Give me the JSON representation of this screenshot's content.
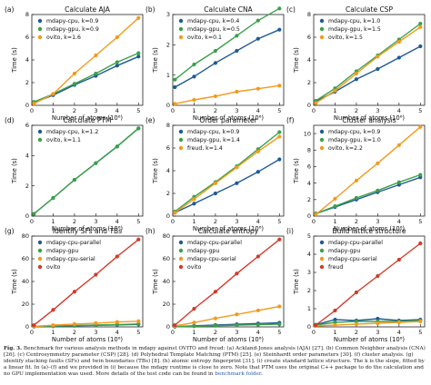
{
  "chart_data": [
    {
      "type": "line",
      "letter": "(a)",
      "title": "Calculate AJA",
      "xlabel": "Number of atoms (10⁶)",
      "ylabel": "Time (s)",
      "xlim": [
        0,
        5.2
      ],
      "ylim": [
        0,
        8
      ],
      "xticks": [
        0,
        1,
        2,
        3,
        4,
        5
      ],
      "yticks": [
        0,
        2,
        4,
        6,
        8
      ],
      "legend": "top-left",
      "series": [
        {
          "name": "mdapy-cpu, k=0.9",
          "color": "#1f5a96",
          "x": [
            0.1,
            1,
            2,
            3,
            4,
            5
          ],
          "y": [
            0.25,
            0.9,
            1.8,
            2.6,
            3.5,
            4.3
          ]
        },
        {
          "name": "mdapy-gpu, k=0.9",
          "color": "#3aa14a",
          "x": [
            0.1,
            1,
            2,
            3,
            4,
            5
          ],
          "y": [
            0.3,
            1.0,
            1.9,
            2.8,
            3.8,
            4.6
          ]
        },
        {
          "name": "ovito, k=1.6",
          "color": "#f39a1c",
          "x": [
            0.1,
            1,
            2,
            3,
            4,
            5
          ],
          "y": [
            0.15,
            1.0,
            2.8,
            4.4,
            6.0,
            7.7
          ]
        }
      ]
    },
    {
      "type": "line",
      "letter": "(b)",
      "title": "Calculate CNA",
      "xlabel": "Number of atoms (10⁶)",
      "ylabel": "Time (s)",
      "xlim": [
        0,
        5.2
      ],
      "ylim": [
        0,
        3
      ],
      "xticks": [
        0,
        1,
        2,
        3,
        4,
        5
      ],
      "yticks": [
        0,
        1,
        2,
        3
      ],
      "legend": "top-left",
      "series": [
        {
          "name": "mdapy-cpu, k=0.4",
          "color": "#1f5a96",
          "x": [
            0.1,
            1,
            2,
            3,
            4,
            5
          ],
          "y": [
            0.6,
            0.95,
            1.4,
            1.8,
            2.2,
            2.5
          ]
        },
        {
          "name": "mdapy-gpu, k=0.5",
          "color": "#3aa14a",
          "x": [
            0.1,
            1,
            2,
            3,
            4,
            5
          ],
          "y": [
            0.85,
            1.35,
            1.8,
            2.3,
            2.8,
            3.2
          ]
        },
        {
          "name": "ovito, k=0.1",
          "color": "#f39a1c",
          "x": [
            0.1,
            1,
            2,
            3,
            4,
            5
          ],
          "y": [
            0.05,
            0.18,
            0.3,
            0.45,
            0.55,
            0.65
          ]
        }
      ]
    },
    {
      "type": "line",
      "letter": "(c)",
      "title": "Calculate CSP",
      "xlabel": "Number of atoms (10⁶)",
      "ylabel": "Time (s)",
      "xlim": [
        0,
        5.2
      ],
      "ylim": [
        0,
        8
      ],
      "xticks": [
        0,
        1,
        2,
        3,
        4,
        5
      ],
      "yticks": [
        0,
        2,
        4,
        6,
        8
      ],
      "legend": "top-left",
      "series": [
        {
          "name": "mdapy-cpu, k=1.0",
          "color": "#1f5a96",
          "x": [
            0.1,
            1,
            2,
            3,
            4,
            5
          ],
          "y": [
            0.35,
            1.2,
            2.3,
            3.2,
            4.2,
            5.2
          ]
        },
        {
          "name": "mdapy-gpu, k=1.5",
          "color": "#3aa14a",
          "x": [
            0.1,
            1,
            2,
            3,
            4,
            5
          ],
          "y": [
            0.4,
            1.5,
            3.0,
            4.4,
            5.8,
            7.2
          ]
        },
        {
          "name": "ovito, k=1.5",
          "color": "#f39a1c",
          "x": [
            0.1,
            1,
            2,
            3,
            4,
            5
          ],
          "y": [
            0.2,
            1.3,
            2.8,
            4.3,
            5.6,
            6.9
          ]
        }
      ]
    },
    {
      "type": "line",
      "letter": "(d)",
      "title": "Calculate PTM",
      "xlabel": "Number of atoms (10⁶)",
      "ylabel": "Time (s)",
      "xlim": [
        0,
        5.2
      ],
      "ylim": [
        0,
        6
      ],
      "xticks": [
        0,
        1,
        2,
        3,
        4,
        5
      ],
      "yticks": [
        0,
        2,
        4,
        6
      ],
      "legend": "top-left",
      "series": [
        {
          "name": "mdapy-cpu, k=1.2",
          "color": "#1f5a96",
          "x": [
            0.1,
            1,
            2,
            3,
            4,
            5
          ],
          "y": [
            0.15,
            1.2,
            2.4,
            3.5,
            4.6,
            5.8
          ]
        },
        {
          "name": "ovito, k=1.1",
          "color": "#3aa14a",
          "x": [
            0.1,
            1,
            2,
            3,
            4,
            5
          ],
          "y": [
            0.15,
            1.2,
            2.4,
            3.5,
            4.6,
            5.8
          ]
        }
      ]
    },
    {
      "type": "line",
      "letter": "(e)",
      "title": "Order parameter",
      "xlabel": "Number of atoms (10⁶)",
      "ylabel": "Time (s)",
      "xlim": [
        0,
        5.2
      ],
      "ylim": [
        0,
        8
      ],
      "xticks": [
        0,
        1,
        2,
        3,
        4,
        5
      ],
      "yticks": [
        0,
        2,
        4,
        6,
        8
      ],
      "legend": "top-left",
      "series": [
        {
          "name": "mdapy-cpu, k=0.9",
          "color": "#1f5a96",
          "x": [
            0.1,
            1,
            2,
            3,
            4,
            5
          ],
          "y": [
            0.3,
            1.1,
            2.0,
            2.9,
            3.9,
            5.0
          ]
        },
        {
          "name": "mdapy-gpu, k=1.4",
          "color": "#3aa14a",
          "x": [
            0.1,
            1,
            2,
            3,
            4,
            5
          ],
          "y": [
            0.4,
            1.7,
            3.0,
            4.4,
            5.9,
            7.4
          ]
        },
        {
          "name": "freud, k=1.4",
          "color": "#f39a1c",
          "x": [
            0.1,
            1,
            2,
            3,
            4,
            5
          ],
          "y": [
            0.3,
            1.5,
            2.9,
            4.3,
            5.7,
            7.0
          ]
        }
      ]
    },
    {
      "type": "line",
      "letter": "(f)",
      "title": "Cluster analysis",
      "xlabel": "Number of atoms (10⁶)",
      "ylabel": "Time (s)",
      "xlim": [
        0,
        5.2
      ],
      "ylim": [
        0,
        11
      ],
      "xticks": [
        0,
        1,
        2,
        3,
        4,
        5
      ],
      "yticks": [
        0,
        2,
        4,
        6,
        8,
        10
      ],
      "legend": "top-left",
      "series": [
        {
          "name": "mdapy-cpu, k=0.9",
          "color": "#1f5a96",
          "x": [
            0.1,
            1,
            2,
            3,
            4,
            5
          ],
          "y": [
            0.3,
            1.1,
            2.0,
            2.9,
            3.8,
            4.7
          ]
        },
        {
          "name": "mdapy-gpu, k=1.0",
          "color": "#3aa14a",
          "x": [
            0.1,
            1,
            2,
            3,
            4,
            5
          ],
          "y": [
            0.3,
            1.2,
            2.2,
            3.1,
            4.1,
            5.0
          ]
        },
        {
          "name": "ovito, k=2.2",
          "color": "#f39a1c",
          "x": [
            0.1,
            1,
            2,
            3,
            4,
            5
          ],
          "y": [
            0.2,
            2.1,
            4.3,
            6.4,
            8.6,
            10.8
          ]
        }
      ]
    },
    {
      "type": "line",
      "letter": "(g)",
      "title": "Identify SFs and TBs",
      "xlabel": "Number of atoms (10⁶)",
      "ylabel": "Time (s)",
      "xlim": [
        0,
        5.2
      ],
      "ylim": [
        0,
        80
      ],
      "xticks": [
        0,
        1,
        2,
        3,
        4,
        5
      ],
      "yticks": [
        0,
        20,
        40,
        60,
        80
      ],
      "legend": "top-left",
      "series": [
        {
          "name": "mdapy-cpu-parallel",
          "color": "#1f5a96",
          "x": [
            0.1,
            1,
            2,
            3,
            4,
            5
          ],
          "y": [
            0.2,
            0.6,
            1.0,
            1.4,
            1.8,
            2.2
          ]
        },
        {
          "name": "mdapy-gpu",
          "color": "#3aa14a",
          "x": [
            0.1,
            1,
            2,
            3,
            4,
            5
          ],
          "y": [
            0.3,
            0.7,
            1.2,
            1.6,
            2.1,
            2.6
          ]
        },
        {
          "name": "mdapy-cpu-serial",
          "color": "#f39a1c",
          "x": [
            0.1,
            1,
            2,
            3,
            4,
            5
          ],
          "y": [
            0.4,
            1.5,
            2.5,
            3.3,
            4.3,
            5.0
          ]
        },
        {
          "name": "ovito",
          "color": "#d23a2a",
          "x": [
            0.1,
            1,
            2,
            3,
            4,
            5
          ],
          "y": [
            1.5,
            15,
            31,
            46,
            62,
            77
          ]
        }
      ]
    },
    {
      "type": "line",
      "letter": "(h)",
      "title": "Calculate entropy",
      "xlabel": "Number of atoms (10⁶)",
      "ylabel": "Time (s)",
      "xlim": [
        0,
        5.2
      ],
      "ylim": [
        0,
        80
      ],
      "xticks": [
        0,
        1,
        2,
        3,
        4,
        5
      ],
      "yticks": [
        0,
        20,
        40,
        60,
        80
      ],
      "legend": "top-left",
      "series": [
        {
          "name": "mdapy-cpu-parallel",
          "color": "#1f5a96",
          "x": [
            0.1,
            1,
            2,
            3,
            4,
            5
          ],
          "y": [
            0.2,
            1.0,
            1.6,
            2.3,
            3.0,
            3.6
          ]
        },
        {
          "name": "mdapy-gpu",
          "color": "#3aa14a",
          "x": [
            0.1,
            1,
            2,
            3,
            4,
            5
          ],
          "y": [
            0.2,
            0.6,
            1.0,
            1.5,
            1.9,
            2.3
          ]
        },
        {
          "name": "mdapy-cpu-serial",
          "color": "#f39a1c",
          "x": [
            0.1,
            1,
            2,
            3,
            4,
            5
          ],
          "y": [
            0.8,
            3.8,
            7.5,
            11,
            14.5,
            18
          ]
        },
        {
          "name": "ovito",
          "color": "#d23a2a",
          "x": [
            0.1,
            1,
            2,
            3,
            4,
            5
          ],
          "y": [
            1.5,
            16,
            31,
            47,
            62,
            77
          ]
        }
      ]
    },
    {
      "type": "line",
      "letter": "(i)",
      "title": "Build lattice structure",
      "xlabel": "Number of atoms (10⁶)",
      "ylabel": "Time (s)",
      "xlim": [
        0,
        5.2
      ],
      "ylim": [
        0,
        5
      ],
      "xticks": [
        0,
        1,
        2,
        3,
        4,
        5
      ],
      "yticks": [
        0,
        1,
        2,
        3,
        4,
        5
      ],
      "legend": "top-left",
      "series": [
        {
          "name": "mdapy-cpu-parallel",
          "color": "#1f5a96",
          "x": [
            0.1,
            1,
            2,
            3,
            4,
            5
          ],
          "y": [
            0.12,
            0.4,
            0.35,
            0.45,
            0.35,
            0.4
          ]
        },
        {
          "name": "mdapy-gpu",
          "color": "#3aa14a",
          "x": [
            0.1,
            1,
            2,
            3,
            4,
            5
          ],
          "y": [
            0.1,
            0.25,
            0.3,
            0.3,
            0.3,
            0.35
          ]
        },
        {
          "name": "mdapy-cpu-serial",
          "color": "#f39a1c",
          "x": [
            0.1,
            1,
            2,
            3,
            4,
            5
          ],
          "y": [
            0.05,
            0.1,
            0.15,
            0.2,
            0.25,
            0.3
          ]
        },
        {
          "name": "freud",
          "color": "#d23a2a",
          "x": [
            0.1,
            1,
            2,
            3,
            4,
            5
          ],
          "y": [
            0.1,
            0.9,
            1.9,
            2.8,
            3.7,
            4.6
          ]
        }
      ]
    }
  ],
  "caption": {
    "label": "Fig. 3.",
    "text": " Benchmark for various analysis methods in mdapy against OVITO and freud: (a) Ackland-Jones analysis (AJA) [27]. (b) Common Neighbor analysis (CNA) [26]. (c) Centrosymmetry parameter (CSP) [28]. (d) Polyhedral Template Matching (PTM) [25]. (e) Steinhardt order parameters [30]. (f) cluster analysis. (g) identify stacking faults (SFs) and twin boundaries (TBs) [8]. (h) atomic entropy fingerprint [31]. (i) create standard lattice structure. The k is the slope, fitted by a linear fit. In (a)–(f) and we provided in (i) because the mdapy runtime is close to zero. Note that PTM uses the original C++ package to do the calculation and no GPU implementation was used. More details of the test code can be found in ",
    "link": "benchmark folder",
    "end": "."
  }
}
